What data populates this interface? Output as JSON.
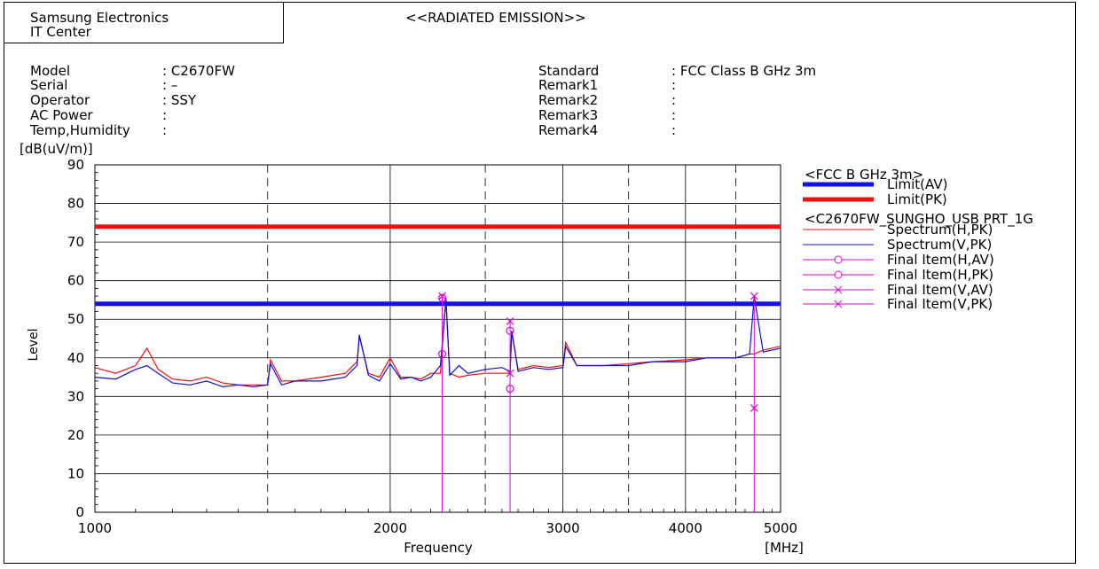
{
  "header": {
    "company_line1": "Samsung Electronics",
    "company_line2": "IT Center",
    "report_title": "<<RADIATED EMISSION>>"
  },
  "info_left": [
    {
      "label": "Model",
      "value": ": C2670FW"
    },
    {
      "label": "Serial",
      "value": ": –"
    },
    {
      "label": "Operator",
      "value": ": SSY"
    },
    {
      "label": "AC Power",
      "value": ":"
    },
    {
      "label": "Temp,Humidity",
      "value": ":"
    }
  ],
  "info_right": [
    {
      "label": "Standard",
      "value": ": FCC Class B GHz 3m"
    },
    {
      "label": "Remark1",
      "value": ":"
    },
    {
      "label": "Remark2",
      "value": ":"
    },
    {
      "label": "Remark3",
      "value": ":"
    },
    {
      "label": "Remark4",
      "value": ":"
    }
  ],
  "chart_data": {
    "type": "line",
    "title": "<<RADIATED EMISSION>>",
    "xlabel": "Frequency",
    "x_unit": "[MHz]",
    "ylabel": "Level",
    "y_unit": "[dB(uV/m)]",
    "x_scale": "log",
    "xlim": [
      1000,
      5000
    ],
    "ylim": [
      0,
      90
    ],
    "x_ticks": [
      1000,
      2000,
      3000,
      4000,
      5000
    ],
    "x_minor_ticks": [
      1500,
      2500,
      3500,
      4500
    ],
    "y_ticks": [
      0,
      10,
      20,
      30,
      40,
      50,
      60,
      70,
      80,
      90
    ],
    "grid": true,
    "legend_placement": "right",
    "legend_groups": [
      "<FCC B GHz 3m>",
      "<C2670FW_SUNGHO_USB PRT_1G"
    ],
    "colors": {
      "limit_av": "#1010ee",
      "limit_pk": "#ee1010",
      "spectrum_h": "#ee1010",
      "spectrum_v": "#1010cc",
      "final": "#dd00dd"
    },
    "limits": [
      {
        "name": "Limit(AV)",
        "value": 54,
        "color": "#1010ee"
      },
      {
        "name": "Limit(PK)",
        "value": 74,
        "color": "#ee1010"
      }
    ],
    "series": [
      {
        "name": "Spectrum(H,PK)",
        "color": "#ee1010",
        "x": [
          1000,
          1050,
          1100,
          1130,
          1160,
          1200,
          1250,
          1300,
          1350,
          1400,
          1450,
          1500,
          1510,
          1550,
          1600,
          1700,
          1800,
          1850,
          1860,
          1900,
          1950,
          2000,
          2050,
          2100,
          2150,
          2200,
          2250,
          2280,
          2300,
          2350,
          2400,
          2500,
          2600,
          2650,
          2660,
          2700,
          2800,
          2900,
          3000,
          3020,
          3100,
          3300,
          3500,
          3700,
          4000,
          4200,
          4500,
          4650,
          4700,
          4800,
          5000
        ],
        "y": [
          37.5,
          36,
          38,
          42.5,
          37,
          34.5,
          34,
          35,
          33.5,
          33,
          33,
          33,
          39.5,
          34,
          34,
          35,
          36,
          39,
          45.5,
          36,
          35,
          40,
          35,
          35,
          34.5,
          36,
          36,
          55.5,
          36,
          35,
          35.5,
          36,
          36,
          36,
          47,
          37,
          38,
          37.5,
          38,
          44,
          38,
          38,
          38.5,
          39,
          39.5,
          40,
          40,
          41,
          41,
          42,
          43
        ]
      },
      {
        "name": "Spectrum(V,PK)",
        "color": "#1010cc",
        "x": [
          1000,
          1050,
          1100,
          1130,
          1160,
          1200,
          1250,
          1300,
          1350,
          1400,
          1450,
          1500,
          1510,
          1550,
          1600,
          1700,
          1800,
          1850,
          1860,
          1900,
          1950,
          2000,
          2050,
          2100,
          2150,
          2200,
          2250,
          2280,
          2300,
          2350,
          2400,
          2500,
          2600,
          2650,
          2660,
          2700,
          2800,
          2900,
          3000,
          3020,
          3100,
          3300,
          3500,
          3700,
          4000,
          4200,
          4500,
          4650,
          4700,
          4800,
          5000
        ],
        "y": [
          35,
          34.5,
          37,
          38,
          36,
          33.5,
          33,
          34,
          32.5,
          33,
          32.5,
          33,
          38.5,
          33,
          34,
          34,
          35,
          38,
          46,
          35.5,
          34,
          38.5,
          34.5,
          35,
          34,
          35,
          38,
          55,
          35.5,
          38,
          36,
          37,
          37.5,
          36.5,
          47,
          36.5,
          37.5,
          37,
          37.5,
          43,
          38,
          38,
          38,
          39,
          39,
          40,
          40,
          41,
          56,
          41.5,
          42.5
        ]
      }
    ],
    "final_items": [
      {
        "name": "Final Item(H,AV)",
        "marker": "circle",
        "x": [
          2260,
          2650
        ],
        "y": [
          41,
          32
        ]
      },
      {
        "name": "Final Item(H,PK)",
        "marker": "circle",
        "x": [
          2260,
          2650
        ],
        "y": [
          55.5,
          47
        ]
      },
      {
        "name": "Final Item(V,AV)",
        "marker": "x",
        "x": [
          2650,
          4700
        ],
        "y": [
          36,
          27
        ]
      },
      {
        "name": "Final Item(V,PK)",
        "marker": "x",
        "x": [
          2260,
          2650,
          4700
        ],
        "y": [
          56,
          49.5,
          56
        ]
      }
    ]
  }
}
